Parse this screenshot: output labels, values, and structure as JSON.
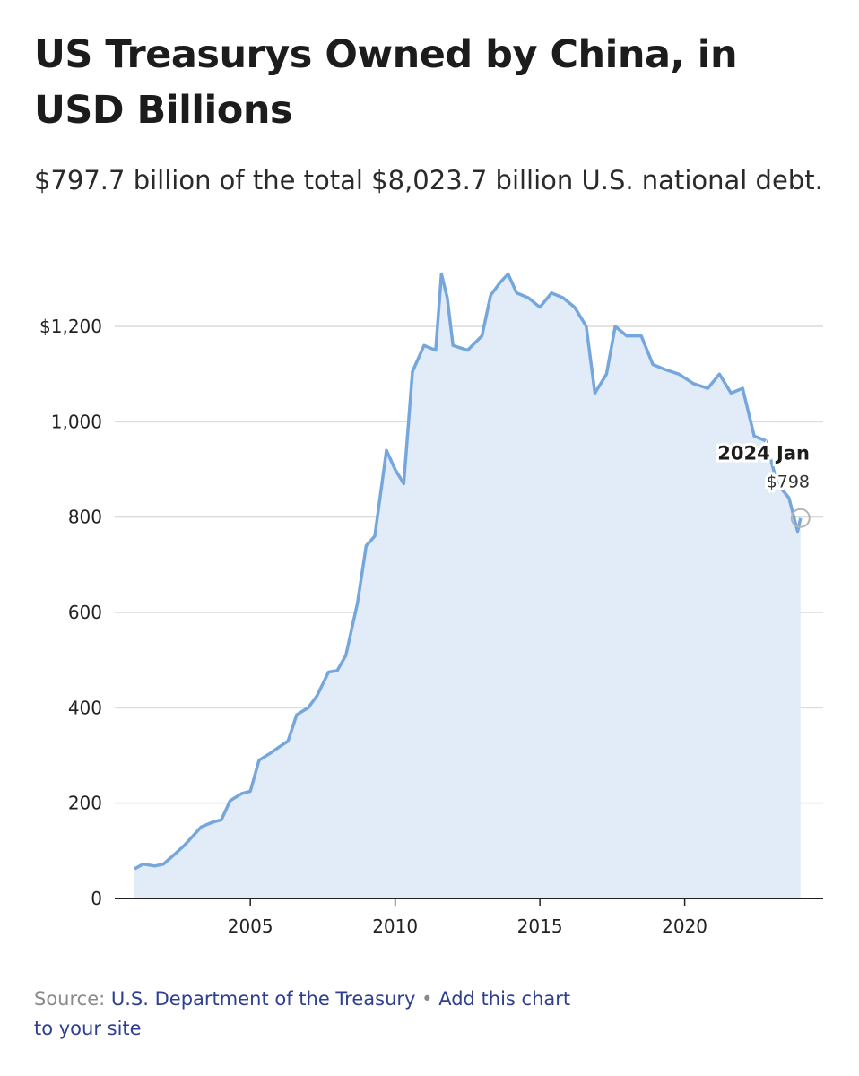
{
  "header": {
    "title": "US Treasurys Owned by China, in USD Billions",
    "subtitle": "$797.7 billion of the total $8,023.7 billion U.S. national debt."
  },
  "footer": {
    "source_label": "Source:",
    "source_link": "U.S. Department of the Treasury",
    "separator": "•",
    "embed_link": "Add this chart to your site"
  },
  "colors": {
    "line": "#76a7dc",
    "area": "#e2ecf8",
    "grid": "#dcdcdc",
    "axis": "#222222",
    "marker": "#b4b4b4"
  },
  "chart_data": {
    "type": "area",
    "title": "US Treasurys Owned by China, in USD Billions",
    "xlabel": "",
    "ylabel": "",
    "xlim": [
      2001.0,
      2024.1
    ],
    "ylim": [
      0,
      1300
    ],
    "grid": true,
    "legend": "none",
    "x_ticks": [
      2005,
      2010,
      2015,
      2020
    ],
    "x_tick_labels": [
      "2005",
      "2010",
      "2015",
      "2020"
    ],
    "y_ticks": [
      0,
      200,
      400,
      600,
      800,
      1000,
      1200
    ],
    "y_tick_labels": [
      "0",
      "200",
      "400",
      "600",
      "800",
      "1,000",
      "$1,200"
    ],
    "series": [
      {
        "x": [
          2001.0,
          2001.3,
          2001.7,
          2002.0,
          2002.3,
          2002.7,
          2003.0,
          2003.3,
          2003.7,
          2004.0,
          2004.3,
          2004.7,
          2005.0,
          2005.3,
          2005.7,
          2006.0,
          2006.3,
          2006.6,
          2007.0,
          2007.3,
          2007.7,
          2008.0,
          2008.3,
          2008.7,
          2009.0,
          2009.3,
          2009.7,
          2010.0,
          2010.3,
          2010.6,
          2011.0,
          2011.4,
          2011.6,
          2011.8,
          2012.0,
          2012.5,
          2013.0,
          2013.3,
          2013.6,
          2013.9,
          2014.2,
          2014.6,
          2015.0,
          2015.4,
          2015.8,
          2016.2,
          2016.6,
          2016.9,
          2017.3,
          2017.6,
          2018.0,
          2018.5,
          2018.9,
          2019.3,
          2019.8,
          2020.3,
          2020.8,
          2021.2,
          2021.6,
          2022.0,
          2022.4,
          2022.8,
          2023.2,
          2023.6,
          2023.9,
          2024.0
        ],
        "values": [
          62,
          72,
          68,
          72,
          88,
          110,
          130,
          150,
          160,
          165,
          205,
          220,
          225,
          290,
          305,
          318,
          330,
          385,
          400,
          425,
          475,
          478,
          510,
          620,
          740,
          760,
          940,
          900,
          870,
          1105,
          1160,
          1150,
          1310,
          1260,
          1160,
          1150,
          1180,
          1265,
          1290,
          1310,
          1270,
          1260,
          1240,
          1270,
          1260,
          1240,
          1200,
          1060,
          1100,
          1200,
          1180,
          1180,
          1120,
          1110,
          1100,
          1080,
          1070,
          1100,
          1060,
          1070,
          970,
          960,
          870,
          840,
          770,
          798
        ]
      }
    ],
    "annotation": {
      "x": 2024.0,
      "y": 798,
      "label": "2024 Jan",
      "value_label": "$798"
    }
  }
}
